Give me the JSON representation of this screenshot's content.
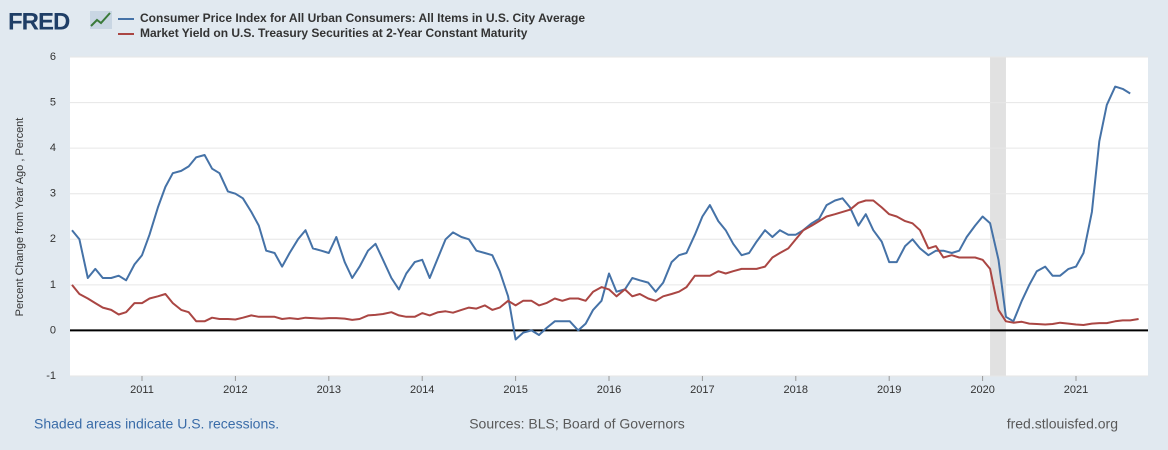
{
  "logo": "FRED",
  "chart_data": {
    "type": "line",
    "y_label": "Percent Change from Year Ago , Percent",
    "footer": {
      "left": "Shaded areas indicate U.S. recessions.",
      "center": "Sources: BLS; Board of Governors",
      "right": "fred.stlouisfed.org"
    },
    "xlim": [
      2010.229,
      2021.771
    ],
    "xticks": [
      2011,
      2012,
      2013,
      2014,
      2015,
      2016,
      2017,
      2018,
      2019,
      2020,
      2021
    ],
    "ylim": [
      -1,
      6
    ],
    "yticks": [
      -1,
      0,
      1,
      2,
      3,
      4,
      5,
      6
    ],
    "grid": true,
    "recessions": [
      [
        2020.08,
        2020.25
      ]
    ],
    "recession_color": "#e1e1e1",
    "x": [
      2010.25,
      2010.33,
      2010.42,
      2010.5,
      2010.58,
      2010.67,
      2010.75,
      2010.83,
      2010.92,
      2011.0,
      2011.08,
      2011.17,
      2011.25,
      2011.33,
      2011.42,
      2011.5,
      2011.58,
      2011.67,
      2011.75,
      2011.83,
      2011.92,
      2012.0,
      2012.08,
      2012.17,
      2012.25,
      2012.33,
      2012.42,
      2012.5,
      2012.58,
      2012.67,
      2012.75,
      2012.83,
      2012.92,
      2013.0,
      2013.08,
      2013.17,
      2013.25,
      2013.33,
      2013.42,
      2013.5,
      2013.58,
      2013.67,
      2013.75,
      2013.83,
      2013.92,
      2014.0,
      2014.08,
      2014.17,
      2014.25,
      2014.33,
      2014.42,
      2014.5,
      2014.58,
      2014.67,
      2014.75,
      2014.83,
      2014.92,
      2015.0,
      2015.08,
      2015.17,
      2015.25,
      2015.33,
      2015.42,
      2015.5,
      2015.58,
      2015.67,
      2015.75,
      2015.83,
      2015.92,
      2016.0,
      2016.08,
      2016.17,
      2016.25,
      2016.33,
      2016.42,
      2016.5,
      2016.58,
      2016.67,
      2016.75,
      2016.83,
      2016.92,
      2017.0,
      2017.08,
      2017.17,
      2017.25,
      2017.33,
      2017.42,
      2017.5,
      2017.58,
      2017.67,
      2017.75,
      2017.83,
      2017.92,
      2018.0,
      2018.08,
      2018.17,
      2018.25,
      2018.33,
      2018.42,
      2018.5,
      2018.58,
      2018.67,
      2018.75,
      2018.83,
      2018.92,
      2019.0,
      2019.08,
      2019.17,
      2019.25,
      2019.33,
      2019.42,
      2019.5,
      2019.58,
      2019.67,
      2019.75,
      2019.83,
      2019.92,
      2020.0,
      2020.08,
      2020.17,
      2020.25,
      2020.33,
      2020.42,
      2020.5,
      2020.58,
      2020.67,
      2020.75,
      2020.83,
      2020.92,
      2021.0,
      2021.08,
      2021.17,
      2021.25,
      2021.33,
      2021.42,
      2021.5,
      2021.58,
      2021.67
    ],
    "series": [
      {
        "name": "Consumer Price Index for All Urban Consumers: All Items in U.S. City Average",
        "color": "#4572a7",
        "values": [
          2.2,
          2.0,
          1.15,
          1.35,
          1.15,
          1.15,
          1.2,
          1.1,
          1.45,
          1.65,
          2.1,
          2.7,
          3.15,
          3.45,
          3.5,
          3.6,
          3.8,
          3.85,
          3.55,
          3.45,
          3.05,
          3.0,
          2.9,
          2.6,
          2.3,
          1.75,
          1.7,
          1.4,
          1.7,
          2.0,
          2.2,
          1.8,
          1.75,
          1.7,
          2.05,
          1.5,
          1.15,
          1.4,
          1.75,
          1.9,
          1.55,
          1.15,
          0.9,
          1.25,
          1.5,
          1.55,
          1.15,
          1.6,
          2.0,
          2.15,
          2.05,
          2.0,
          1.75,
          1.7,
          1.65,
          1.3,
          0.75,
          -0.2,
          -0.05,
          0.0,
          -0.1,
          0.05,
          0.2,
          0.2,
          0.2,
          0.0,
          0.15,
          0.45,
          0.65,
          1.25,
          0.85,
          0.9,
          1.15,
          1.1,
          1.05,
          0.85,
          1.05,
          1.5,
          1.65,
          1.7,
          2.1,
          2.5,
          2.75,
          2.4,
          2.2,
          1.9,
          1.65,
          1.7,
          1.95,
          2.2,
          2.05,
          2.2,
          2.1,
          2.1,
          2.2,
          2.35,
          2.45,
          2.75,
          2.85,
          2.9,
          2.7,
          2.3,
          2.55,
          2.2,
          1.95,
          1.5,
          1.5,
          1.85,
          2.0,
          1.8,
          1.65,
          1.75,
          1.75,
          1.7,
          1.75,
          2.05,
          2.3,
          2.5,
          2.35,
          1.55,
          0.3,
          0.2,
          0.65,
          1.0,
          1.3,
          1.4,
          1.2,
          1.2,
          1.35,
          1.4,
          1.7,
          2.6,
          4.15,
          4.95,
          5.35,
          5.3,
          5.2,
          null
        ]
      },
      {
        "name": "Market Yield on U.S. Treasury Securities at 2-Year Constant Maturity",
        "color": "#aa4643",
        "values": [
          1.0,
          0.8,
          0.7,
          0.6,
          0.5,
          0.45,
          0.35,
          0.4,
          0.6,
          0.6,
          0.7,
          0.75,
          0.8,
          0.6,
          0.45,
          0.4,
          0.2,
          0.2,
          0.28,
          0.25,
          0.25,
          0.24,
          0.28,
          0.33,
          0.3,
          0.3,
          0.3,
          0.25,
          0.27,
          0.25,
          0.28,
          0.27,
          0.26,
          0.27,
          0.27,
          0.26,
          0.23,
          0.25,
          0.33,
          0.34,
          0.36,
          0.4,
          0.33,
          0.3,
          0.3,
          0.38,
          0.33,
          0.4,
          0.42,
          0.39,
          0.45,
          0.5,
          0.48,
          0.55,
          0.45,
          0.5,
          0.65,
          0.55,
          0.65,
          0.65,
          0.55,
          0.6,
          0.7,
          0.65,
          0.7,
          0.7,
          0.65,
          0.85,
          0.95,
          0.9,
          0.75,
          0.9,
          0.75,
          0.8,
          0.7,
          0.65,
          0.75,
          0.8,
          0.85,
          0.95,
          1.2,
          1.2,
          1.2,
          1.3,
          1.25,
          1.3,
          1.35,
          1.35,
          1.35,
          1.4,
          1.6,
          1.7,
          1.8,
          2.0,
          2.2,
          2.3,
          2.4,
          2.5,
          2.55,
          2.6,
          2.65,
          2.8,
          2.85,
          2.85,
          2.7,
          2.55,
          2.5,
          2.4,
          2.35,
          2.2,
          1.8,
          1.85,
          1.6,
          1.65,
          1.6,
          1.6,
          1.6,
          1.55,
          1.35,
          0.45,
          0.2,
          0.17,
          0.19,
          0.15,
          0.14,
          0.13,
          0.14,
          0.17,
          0.15,
          0.13,
          0.12,
          0.15,
          0.16,
          0.16,
          0.2,
          0.22,
          0.22,
          0.25
        ]
      }
    ]
  }
}
